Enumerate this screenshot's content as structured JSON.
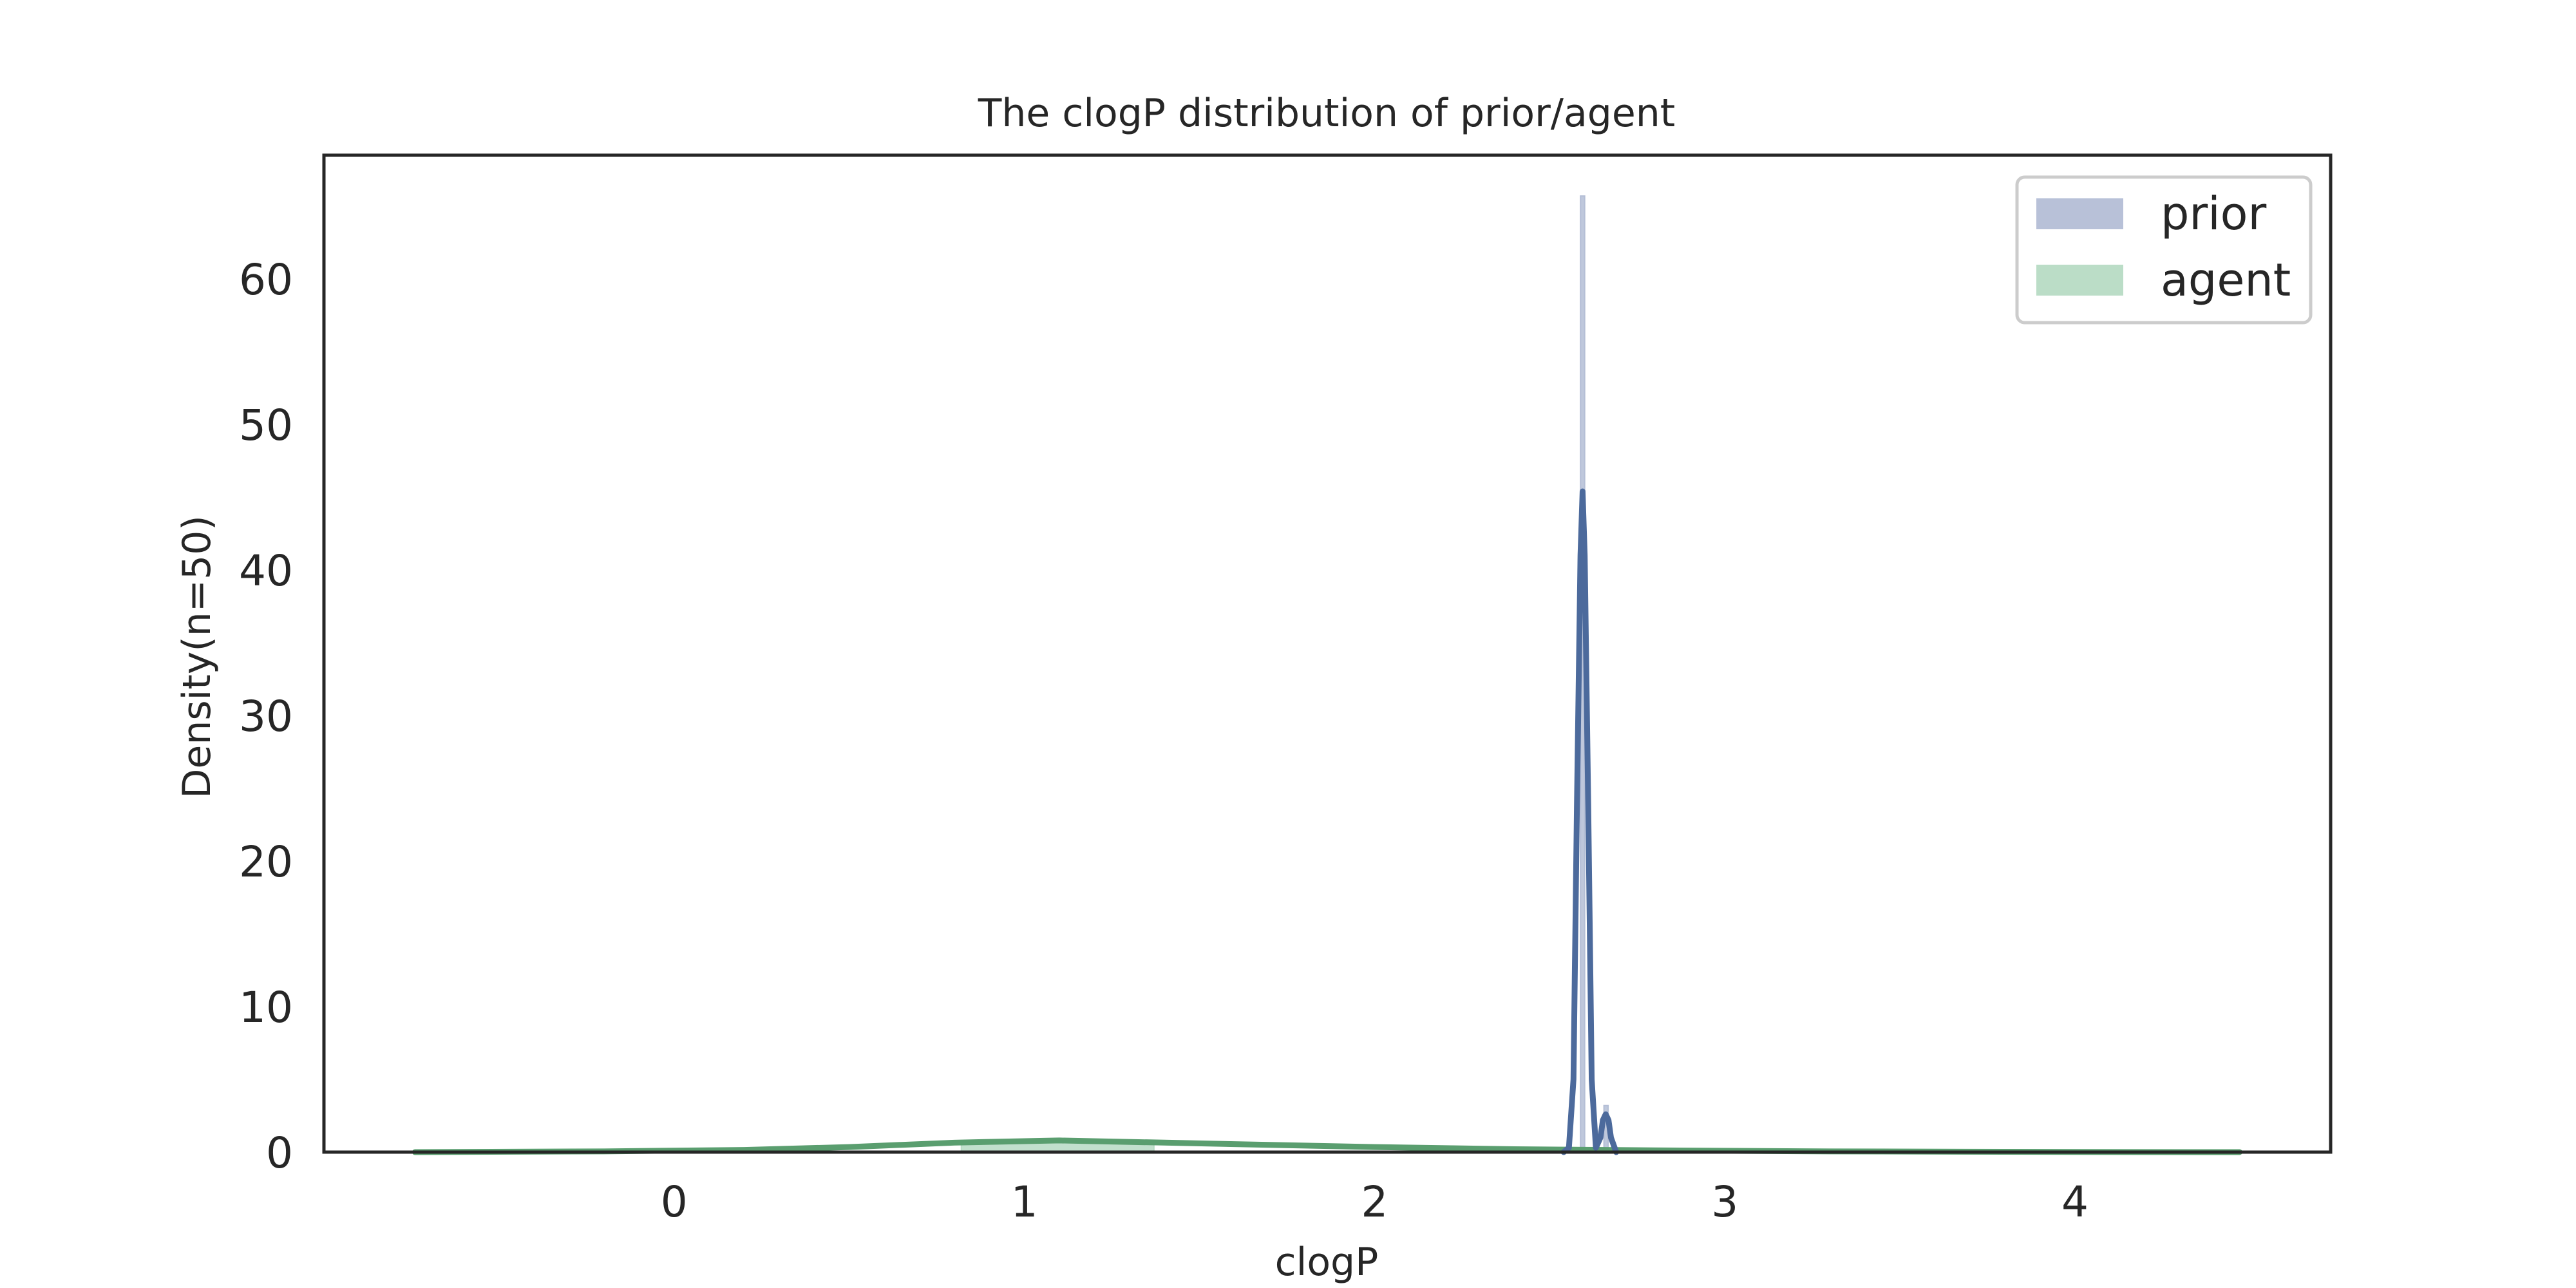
{
  "chart_data": {
    "type": "area",
    "title": "The clogP distribution of prior/agent",
    "xlabel": "clogP",
    "ylabel": "Density(n=50)",
    "xlim": [
      -1.0,
      4.73
    ],
    "ylim": [
      0,
      68.5
    ],
    "xticks": [
      0,
      1,
      2,
      3,
      4
    ],
    "yticks": [
      0,
      10,
      20,
      30,
      40,
      50,
      60
    ],
    "grid": false,
    "legend_position": "top-right",
    "series": [
      {
        "name": "prior",
        "color": "#4c6a9c",
        "fill_color": "#b4bed6",
        "histogram": [
          {
            "x0": 2.588,
            "x1": 2.6,
            "density": 65.7
          },
          {
            "x0": 2.655,
            "x1": 2.667,
            "density": 3.2
          }
        ],
        "kde": [
          {
            "x": 2.54,
            "y": 0.0
          },
          {
            "x": 2.555,
            "y": 0.3
          },
          {
            "x": 2.568,
            "y": 5.0
          },
          {
            "x": 2.578,
            "y": 24.0
          },
          {
            "x": 2.588,
            "y": 41.0
          },
          {
            "x": 2.594,
            "y": 45.4
          },
          {
            "x": 2.6,
            "y": 41.0
          },
          {
            "x": 2.61,
            "y": 24.0
          },
          {
            "x": 2.62,
            "y": 5.0
          },
          {
            "x": 2.632,
            "y": 0.3
          },
          {
            "x": 2.645,
            "y": 1.0
          },
          {
            "x": 2.652,
            "y": 2.2
          },
          {
            "x": 2.66,
            "y": 2.6
          },
          {
            "x": 2.668,
            "y": 2.2
          },
          {
            "x": 2.675,
            "y": 1.0
          },
          {
            "x": 2.69,
            "y": 0.0
          }
        ]
      },
      {
        "name": "agent",
        "color": "#5a9e6f",
        "fill_color": "#b7dbc4",
        "histogram": [
          {
            "x0": 0.82,
            "x1": 1.37,
            "density": 0.75
          }
        ],
        "kde": [
          {
            "x": -0.74,
            "y": 0.0
          },
          {
            "x": -0.2,
            "y": 0.05
          },
          {
            "x": 0.2,
            "y": 0.15
          },
          {
            "x": 0.5,
            "y": 0.35
          },
          {
            "x": 0.8,
            "y": 0.65
          },
          {
            "x": 1.1,
            "y": 0.8
          },
          {
            "x": 1.4,
            "y": 0.65
          },
          {
            "x": 1.7,
            "y": 0.5
          },
          {
            "x": 2.0,
            "y": 0.35
          },
          {
            "x": 2.4,
            "y": 0.2
          },
          {
            "x": 2.8,
            "y": 0.12
          },
          {
            "x": 3.3,
            "y": 0.05
          },
          {
            "x": 4.0,
            "y": 0.01
          },
          {
            "x": 4.47,
            "y": 0.0
          }
        ]
      }
    ]
  }
}
